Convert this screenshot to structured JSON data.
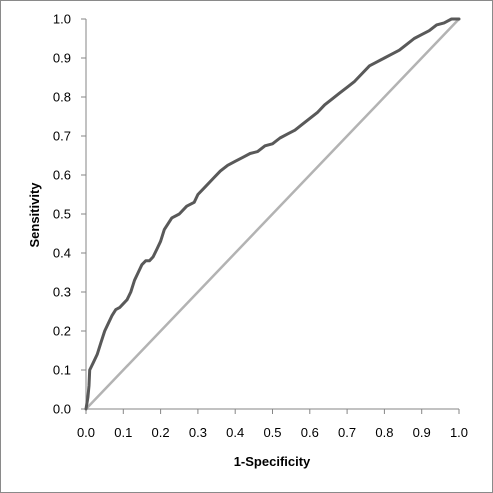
{
  "chart_data": {
    "type": "line",
    "title": "",
    "xlabel": "1-Specificity",
    "ylabel": "Sensitivity",
    "xlim": [
      0,
      1
    ],
    "ylim": [
      0,
      1
    ],
    "xticks": [
      "0.0",
      "0.1",
      "0.2",
      "0.3",
      "0.4",
      "0.5",
      "0.6",
      "0.7",
      "0.8",
      "0.9",
      "1.0"
    ],
    "yticks": [
      "0.0",
      "0.1",
      "0.2",
      "0.3",
      "0.4",
      "0.5",
      "0.6",
      "0.7",
      "0.8",
      "0.9",
      "1.0"
    ],
    "grid": false,
    "legend": "none",
    "series": [
      {
        "color": "#595959",
        "points": [
          [
            0.0,
            0.0
          ],
          [
            0.005,
            0.03
          ],
          [
            0.008,
            0.06
          ],
          [
            0.01,
            0.1
          ],
          [
            0.015,
            0.11
          ],
          [
            0.02,
            0.12
          ],
          [
            0.03,
            0.14
          ],
          [
            0.04,
            0.17
          ],
          [
            0.05,
            0.2
          ],
          [
            0.06,
            0.22
          ],
          [
            0.07,
            0.24
          ],
          [
            0.08,
            0.255
          ],
          [
            0.09,
            0.26
          ],
          [
            0.1,
            0.27
          ],
          [
            0.11,
            0.28
          ],
          [
            0.12,
            0.3
          ],
          [
            0.13,
            0.33
          ],
          [
            0.14,
            0.35
          ],
          [
            0.15,
            0.37
          ],
          [
            0.16,
            0.38
          ],
          [
            0.17,
            0.38
          ],
          [
            0.18,
            0.39
          ],
          [
            0.19,
            0.41
          ],
          [
            0.2,
            0.43
          ],
          [
            0.21,
            0.46
          ],
          [
            0.23,
            0.49
          ],
          [
            0.25,
            0.5
          ],
          [
            0.27,
            0.52
          ],
          [
            0.29,
            0.53
          ],
          [
            0.3,
            0.55
          ],
          [
            0.32,
            0.57
          ],
          [
            0.34,
            0.59
          ],
          [
            0.36,
            0.61
          ],
          [
            0.38,
            0.625
          ],
          [
            0.4,
            0.635
          ],
          [
            0.42,
            0.645
          ],
          [
            0.44,
            0.655
          ],
          [
            0.46,
            0.66
          ],
          [
            0.48,
            0.675
          ],
          [
            0.5,
            0.68
          ],
          [
            0.52,
            0.695
          ],
          [
            0.54,
            0.705
          ],
          [
            0.56,
            0.715
          ],
          [
            0.58,
            0.73
          ],
          [
            0.6,
            0.745
          ],
          [
            0.62,
            0.76
          ],
          [
            0.64,
            0.78
          ],
          [
            0.66,
            0.795
          ],
          [
            0.68,
            0.81
          ],
          [
            0.7,
            0.825
          ],
          [
            0.72,
            0.84
          ],
          [
            0.74,
            0.86
          ],
          [
            0.76,
            0.88
          ],
          [
            0.78,
            0.89
          ],
          [
            0.8,
            0.9
          ],
          [
            0.82,
            0.91
          ],
          [
            0.84,
            0.92
          ],
          [
            0.86,
            0.935
          ],
          [
            0.88,
            0.95
          ],
          [
            0.9,
            0.96
          ],
          [
            0.92,
            0.97
          ],
          [
            0.94,
            0.985
          ],
          [
            0.96,
            0.99
          ],
          [
            0.98,
            1.0
          ],
          [
            1.0,
            1.0
          ]
        ]
      },
      {
        "color": "#b3b3b3",
        "points": [
          [
            0,
            0
          ],
          [
            1,
            1
          ]
        ]
      }
    ]
  }
}
